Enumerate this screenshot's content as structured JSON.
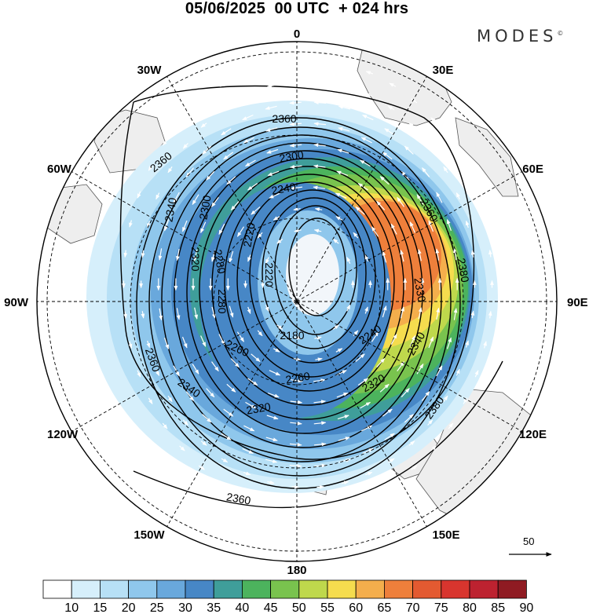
{
  "header": {
    "title": "05/06/2025  00 UTC  + 024 hrs",
    "brand": "MODES",
    "brand_mark": "©"
  },
  "map": {
    "projection": "south polar stereographic",
    "longitude_labels": [
      "0",
      "30E",
      "60E",
      "90E",
      "120E",
      "150E",
      "180",
      "150W",
      "120W",
      "90W",
      "60W",
      "30W"
    ],
    "contour_labels": [
      "2360",
      "2300",
      "2240",
      "2380",
      "2360",
      "2330",
      "2240",
      "2340",
      "2320",
      "2260",
      "2360",
      "2340",
      "2320",
      "2360",
      "2300",
      "2280",
      "2220",
      "2340",
      "2320",
      "2280",
      "2180",
      "2260",
      "2220",
      "2380",
      "2360"
    ],
    "vector_reference": {
      "value": "50"
    }
  },
  "colorbar": {
    "ticks": [
      "10",
      "15",
      "20",
      "25",
      "30",
      "35",
      "40",
      "45",
      "50",
      "55",
      "60",
      "65",
      "70",
      "75",
      "80",
      "85",
      "90"
    ],
    "colors": [
      "#ffffff",
      "#d6effb",
      "#b7e0f6",
      "#8fc7ec",
      "#69a8dc",
      "#4787c6",
      "#3f9e9a",
      "#4cb35d",
      "#79c34e",
      "#bfd84c",
      "#f5dc4e",
      "#f4ae4c",
      "#ee7f3b",
      "#e35a31",
      "#d8352e",
      "#bd2230",
      "#8f1b22"
    ]
  }
}
